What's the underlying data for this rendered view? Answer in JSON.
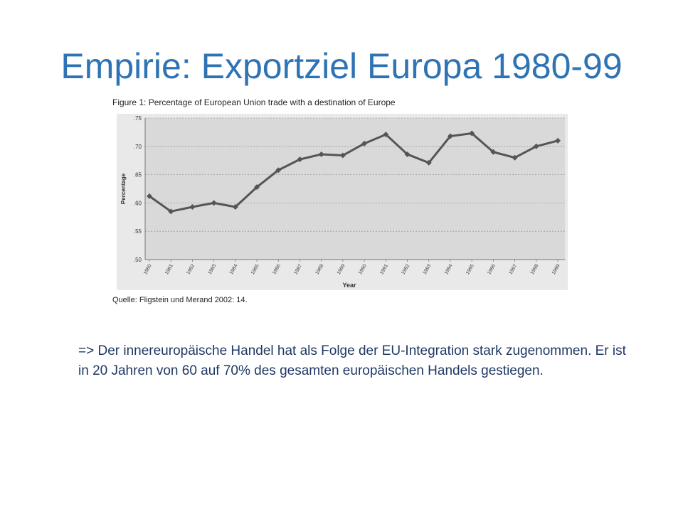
{
  "slide": {
    "title": "Empirie: Exportziel Europa 1980-99",
    "figure_caption": "Figure 1: Percentage of European Union trade with a destination of Europe",
    "source": "Quelle: Fligstein und Merand 2002: 14.",
    "body_text": "=> Der innereuropäische Handel hat als Folge der EU-Integration stark zugenommen. Er ist in 20 Jahren von 60 auf 70% des gesamten europäischen Handels gestiegen."
  },
  "colors": {
    "title": "#2E74B5",
    "body_text": "#1F3864",
    "plot_background": "#D9D9D9",
    "series_line": "#555555"
  },
  "chart_data": {
    "type": "line",
    "xlabel": "Year",
    "ylabel": "Percentage",
    "ylim": [
      0.5,
      0.75
    ],
    "yticks": [
      ".50",
      ".55",
      ".60",
      ".65",
      ".70",
      ".75"
    ],
    "grid": "horizontal dashed",
    "legend": "none",
    "categories": [
      "1980",
      "1981",
      "1982",
      "1983",
      "1984",
      "1985",
      "1986",
      "1987",
      "1988",
      "1989",
      "1990",
      "1991",
      "1992",
      "1993",
      "1994",
      "1995",
      "1996",
      "1997",
      "1998",
      "1999"
    ],
    "series": [
      {
        "values": [
          0.612,
          0.585,
          0.593,
          0.6,
          0.593,
          0.628,
          0.658,
          0.677,
          0.686,
          0.684,
          0.705,
          0.721,
          0.686,
          0.671,
          0.718,
          0.723,
          0.69,
          0.68,
          0.7,
          0.71
        ]
      }
    ]
  }
}
